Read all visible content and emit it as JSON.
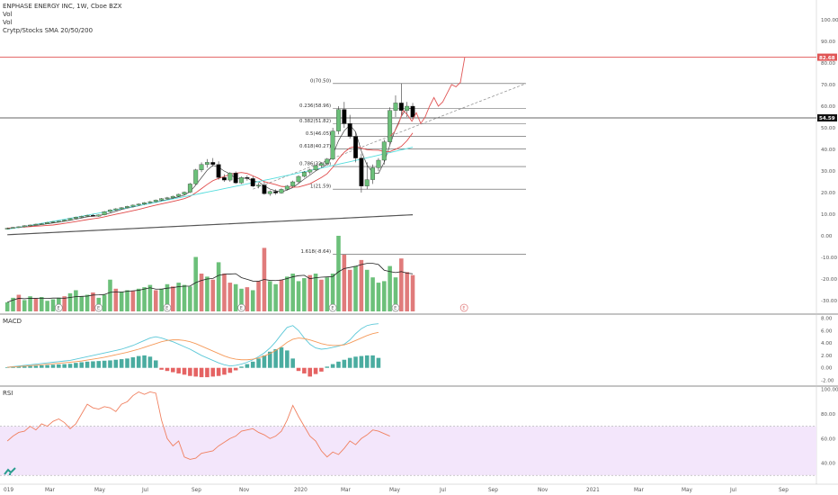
{
  "header": {
    "symbol_line": "ENPHASE ENERGY INC, 1W, Cboe BZX",
    "vol1": "Vol",
    "vol2": "Vol",
    "sma_label": "Crytp/Stocks SMA 20/50/200"
  },
  "macd_label": "MACD",
  "rsi_label": "RSI",
  "colors": {
    "up": "#6cc07a",
    "down": "#000000",
    "vol_up": "#6cc07a",
    "vol_down": "#e07b7b",
    "sma20": "#444444",
    "sma50": "#e04848",
    "sma200": "#555555",
    "cyan": "#55dddd",
    "hline": "#e05555",
    "fib": "#555555",
    "macd": "#5cc8d8",
    "signal": "#f59a5a",
    "hist_pos": "#2a9d8f",
    "hist_neg": "#e04848",
    "rsi": "#f08060",
    "rsi_band": "#f3e6fb"
  },
  "chart_data": {
    "type": "candlestick",
    "title": "ENPHASE ENERGY INC, 1W, Cboe BZX",
    "x_ticks": [
      "019",
      "Mar",
      "May",
      "Jul",
      "Sep",
      "Nov",
      "2020",
      "Mar",
      "May",
      "Jul",
      "Sep",
      "Nov",
      "2021",
      "Mar",
      "May",
      "Jul",
      "Sep"
    ],
    "price_axis": {
      "ticks": [
        "100.00",
        "90.00",
        "80.00",
        "70.00",
        "60.00",
        "50.00",
        "40.00",
        "30.00",
        "20.00",
        "10.00",
        "0.00",
        "-10.00",
        "-20.00",
        "-30.00"
      ],
      "values": [
        100,
        90,
        80,
        70,
        60,
        50,
        40,
        30,
        20,
        10,
        0,
        -10,
        -20,
        -30
      ],
      "ylim": [
        -35,
        105
      ]
    },
    "price_labels": [
      {
        "text": "82.68",
        "value": 82.68,
        "color": "#e05555"
      },
      {
        "text": "54.59",
        "value": 54.59,
        "color": "#111111"
      }
    ],
    "horizontal_lines": [
      {
        "value": 82.68,
        "color": "#e05555"
      },
      {
        "value": 54.59,
        "color": "#333333"
      }
    ],
    "fib_levels": [
      {
        "label": "0(70.50)",
        "value": 70.5
      },
      {
        "label": "0.236(58.96)",
        "value": 58.96
      },
      {
        "label": "0.382(51.82)",
        "value": 51.82
      },
      {
        "label": "0.5(46.05)",
        "value": 46.05
      },
      {
        "label": "0.618(40.27)",
        "value": 40.27
      },
      {
        "label": "0.786(32.06)",
        "value": 32.06
      },
      {
        "label": "1(21.59)",
        "value": 21.59
      },
      {
        "label": "1.618(-8.64)",
        "value": -8.64
      }
    ],
    "candles": [
      [
        3.2,
        3.8,
        2.9,
        3.5
      ],
      [
        3.5,
        4.1,
        3.3,
        3.9
      ],
      [
        3.9,
        4.4,
        3.7,
        4.2
      ],
      [
        4.2,
        4.9,
        4.0,
        4.7
      ],
      [
        4.7,
        5.2,
        4.5,
        5.0
      ],
      [
        5.0,
        5.6,
        4.8,
        5.4
      ],
      [
        5.4,
        5.9,
        5.1,
        5.6
      ],
      [
        5.6,
        6.4,
        5.4,
        6.2
      ],
      [
        6.2,
        6.8,
        5.9,
        6.5
      ],
      [
        6.5,
        7.0,
        6.2,
        6.8
      ],
      [
        6.8,
        7.5,
        6.6,
        7.3
      ],
      [
        7.3,
        8.2,
        7.1,
        8.0
      ],
      [
        8.0,
        8.9,
        7.7,
        8.6
      ],
      [
        8.6,
        9.3,
        8.3,
        9.0
      ],
      [
        9.0,
        9.8,
        8.7,
        9.5
      ],
      [
        9.5,
        10.1,
        8.9,
        9.1
      ],
      [
        9.1,
        9.9,
        8.8,
        9.7
      ],
      [
        9.7,
        11.5,
        9.5,
        11.2
      ],
      [
        11.2,
        12.3,
        10.8,
        12.0
      ],
      [
        12.0,
        12.8,
        11.6,
        12.5
      ],
      [
        12.5,
        13.3,
        12.1,
        13.0
      ],
      [
        13.0,
        13.9,
        12.7,
        13.6
      ],
      [
        13.6,
        14.5,
        13.2,
        14.2
      ],
      [
        14.2,
        15.0,
        13.8,
        14.7
      ],
      [
        14.7,
        15.6,
        14.3,
        15.3
      ],
      [
        15.3,
        16.2,
        14.9,
        15.8
      ],
      [
        15.8,
        16.8,
        15.4,
        16.5
      ],
      [
        16.5,
        17.5,
        16.1,
        17.2
      ],
      [
        17.2,
        18.0,
        16.8,
        17.6
      ],
      [
        17.6,
        18.6,
        17.2,
        18.3
      ],
      [
        18.3,
        19.5,
        17.9,
        19.2
      ],
      [
        19.2,
        20.5,
        18.8,
        20.2
      ],
      [
        20.2,
        24.5,
        19.8,
        24.0
      ],
      [
        24.0,
        31.0,
        23.5,
        30.5
      ],
      [
        30.5,
        34.0,
        29.5,
        33.0
      ],
      [
        33.0,
        35.5,
        31.5,
        34.0
      ],
      [
        34.0,
        36.0,
        32.0,
        33.0
      ],
      [
        33.0,
        34.5,
        26.0,
        27.0
      ],
      [
        27.0,
        28.5,
        25.0,
        25.8
      ],
      [
        25.8,
        29.5,
        25.0,
        29.0
      ],
      [
        29.0,
        29.8,
        24.0,
        24.5
      ],
      [
        24.5,
        27.5,
        24.0,
        27.0
      ],
      [
        27.0,
        28.0,
        25.5,
        26.5
      ],
      [
        26.5,
        27.5,
        22.5,
        23.0
      ],
      [
        23.0,
        24.5,
        22.0,
        23.5
      ],
      [
        23.5,
        25.0,
        19.0,
        19.5
      ],
      [
        19.5,
        21.0,
        18.5,
        20.5
      ],
      [
        20.5,
        21.5,
        19.0,
        19.8
      ],
      [
        19.8,
        22.0,
        19.5,
        21.5
      ],
      [
        21.5,
        23.5,
        21.0,
        23.0
      ],
      [
        23.0,
        25.5,
        22.5,
        25.0
      ],
      [
        25.0,
        28.0,
        24.5,
        27.5
      ],
      [
        27.5,
        30.0,
        27.0,
        29.5
      ],
      [
        29.5,
        31.0,
        28.5,
        30.5
      ],
      [
        30.5,
        33.0,
        30.0,
        32.5
      ],
      [
        32.5,
        34.0,
        31.5,
        33.5
      ],
      [
        33.5,
        36.0,
        33.0,
        35.5
      ],
      [
        35.5,
        50.0,
        35.0,
        48.5
      ],
      [
        48.5,
        60.0,
        47.0,
        58.5
      ],
      [
        58.5,
        62.0,
        50.0,
        52.0
      ],
      [
        52.0,
        56.0,
        45.0,
        46.0
      ],
      [
        46.0,
        48.0,
        34.0,
        36.0
      ],
      [
        36.0,
        38.0,
        20.0,
        23.0
      ],
      [
        23.0,
        34.0,
        21.5,
        26.0
      ],
      [
        26.0,
        33.0,
        24.0,
        31.5
      ],
      [
        31.5,
        36.0,
        30.0,
        35.0
      ],
      [
        35.0,
        44.5,
        33.0,
        43.5
      ],
      [
        43.5,
        59.5,
        42.0,
        58.0
      ],
      [
        58.0,
        65.0,
        55.0,
        61.5
      ],
      [
        61.5,
        70.5,
        56.0,
        58.0
      ],
      [
        58.0,
        62.0,
        55.0,
        60.0
      ],
      [
        60.0,
        61.5,
        54.0,
        55.0
      ]
    ],
    "projection_path": [
      [
        0,
        46
      ],
      [
        1,
        48
      ],
      [
        2,
        52
      ],
      [
        3,
        58
      ],
      [
        4,
        56
      ],
      [
        5,
        53
      ],
      [
        6,
        57
      ],
      [
        7,
        52
      ],
      [
        8,
        55
      ],
      [
        9,
        60
      ],
      [
        10,
        64
      ],
      [
        11,
        60
      ],
      [
        12,
        62
      ],
      [
        13,
        66
      ],
      [
        14,
        70
      ],
      [
        15,
        69
      ],
      [
        16,
        71
      ],
      [
        17,
        82.68
      ]
    ],
    "volume": {
      "ylim": [
        0,
        1
      ],
      "values": [
        0.12,
        0.18,
        0.22,
        0.15,
        0.2,
        0.17,
        0.19,
        0.14,
        0.16,
        0.18,
        0.2,
        0.24,
        0.28,
        0.2,
        0.22,
        0.25,
        0.18,
        0.22,
        0.42,
        0.3,
        0.26,
        0.28,
        0.27,
        0.3,
        0.32,
        0.35,
        0.28,
        0.3,
        0.36,
        0.33,
        0.38,
        0.35,
        0.33,
        0.72,
        0.5,
        0.46,
        0.42,
        0.65,
        0.5,
        0.38,
        0.36,
        0.3,
        0.32,
        0.28,
        0.4,
        0.84,
        0.4,
        0.36,
        0.42,
        0.46,
        0.5,
        0.4,
        0.44,
        0.48,
        0.5,
        0.42,
        0.45,
        0.5,
        1.0,
        0.75,
        0.55,
        0.6,
        0.68,
        0.55,
        0.45,
        0.38,
        0.4,
        0.6,
        0.45,
        0.7,
        0.52,
        0.48
      ],
      "up": [
        1,
        1,
        0,
        1,
        1,
        0,
        1,
        1,
        1,
        1,
        0,
        1,
        1,
        1,
        1,
        0,
        1,
        1,
        1,
        0,
        1,
        1,
        0,
        1,
        1,
        1,
        0,
        1,
        1,
        0,
        1,
        1,
        1,
        1,
        0,
        1,
        0,
        1,
        0,
        0,
        1,
        1,
        0,
        1,
        0,
        0,
        1,
        1,
        0,
        1,
        1,
        1,
        1,
        0,
        1,
        0,
        1,
        1,
        1,
        0,
        0,
        1,
        0,
        1,
        1,
        1,
        1,
        1,
        1,
        0,
        0,
        0
      ]
    },
    "macd": {
      "ylim": [
        -2.5,
        8.5
      ],
      "ticks": [
        "8.00",
        "6.00",
        "4.00",
        "2.00",
        "0.00",
        "-2.00"
      ],
      "tick_values": [
        8,
        6,
        4,
        2,
        0,
        -2
      ],
      "macd": [
        0.1,
        0.2,
        0.3,
        0.4,
        0.5,
        0.6,
        0.7,
        0.8,
        0.9,
        1.0,
        1.1,
        1.2,
        1.4,
        1.6,
        1.8,
        2.0,
        2.2,
        2.4,
        2.6,
        2.8,
        3.0,
        3.3,
        3.6,
        4.0,
        4.4,
        4.8,
        5.0,
        4.8,
        4.5,
        4.2,
        3.8,
        3.4,
        3.0,
        2.5,
        2.0,
        1.6,
        1.2,
        0.8,
        0.5,
        0.3,
        0.4,
        0.6,
        0.9,
        1.3,
        1.8,
        2.4,
        3.2,
        4.2,
        5.4,
        6.5,
        6.8,
        6.0,
        4.8,
        3.8,
        3.2,
        3.0,
        3.1,
        3.3,
        3.5,
        3.8,
        4.5,
        5.5,
        6.3,
        6.8,
        7.0,
        7.1
      ],
      "signal": [
        0.1,
        0.15,
        0.2,
        0.28,
        0.35,
        0.42,
        0.5,
        0.58,
        0.66,
        0.74,
        0.82,
        0.9,
        1.0,
        1.1,
        1.25,
        1.4,
        1.55,
        1.7,
        1.9,
        2.1,
        2.3,
        2.5,
        2.75,
        3.0,
        3.3,
        3.6,
        3.9,
        4.2,
        4.4,
        4.5,
        4.5,
        4.4,
        4.2,
        3.9,
        3.5,
        3.1,
        2.7,
        2.3,
        1.9,
        1.6,
        1.4,
        1.3,
        1.3,
        1.4,
        1.6,
        1.9,
        2.3,
        2.8,
        3.4,
        4.1,
        4.6,
        4.8,
        4.7,
        4.5,
        4.2,
        3.9,
        3.7,
        3.6,
        3.6,
        3.7,
        4.0,
        4.4,
        4.8,
        5.2,
        5.5,
        5.7
      ],
      "hist": [
        0.1,
        0.15,
        0.2,
        0.25,
        0.3,
        0.35,
        0.4,
        0.45,
        0.5,
        0.55,
        0.6,
        0.65,
        0.8,
        0.9,
        1.0,
        1.05,
        1.1,
        1.15,
        1.2,
        1.3,
        1.4,
        1.5,
        1.7,
        1.9,
        2.0,
        1.8,
        1.2,
        -0.3,
        -0.5,
        -0.7,
        -0.9,
        -1.1,
        -1.3,
        -1.4,
        -1.5,
        -1.5,
        -1.4,
        -1.3,
        -1.1,
        -0.8,
        -0.4,
        0.2,
        0.6,
        1.0,
        1.5,
        2.0,
        2.6,
        3.0,
        3.3,
        2.8,
        1.5,
        -0.5,
        -0.9,
        -1.4,
        -1.0,
        -0.6,
        0.2,
        0.6,
        1.0,
        1.3,
        1.6,
        1.8,
        1.9,
        2.0,
        2.0,
        1.6
      ]
    },
    "rsi": {
      "ylim": [
        25,
        102
      ],
      "ticks": [
        "100.00",
        "80.00",
        "60.00",
        "40.00"
      ],
      "tick_values": [
        100,
        80,
        60,
        40
      ],
      "band": [
        30,
        70
      ],
      "values": [
        58,
        62,
        65,
        66,
        70,
        67,
        72,
        70,
        74,
        76,
        73,
        68,
        72,
        80,
        88,
        85,
        84,
        86,
        85,
        82,
        88,
        90,
        95,
        98,
        96,
        98,
        97,
        75,
        60,
        54,
        58,
        45,
        43,
        44,
        48,
        49,
        50,
        54,
        57,
        60,
        62,
        66,
        67,
        68,
        65,
        63,
        60,
        62,
        66,
        75,
        87,
        78,
        70,
        62,
        58,
        50,
        45,
        49,
        47,
        52,
        58,
        55,
        60,
        63,
        67,
        66,
        64,
        62
      ]
    }
  }
}
